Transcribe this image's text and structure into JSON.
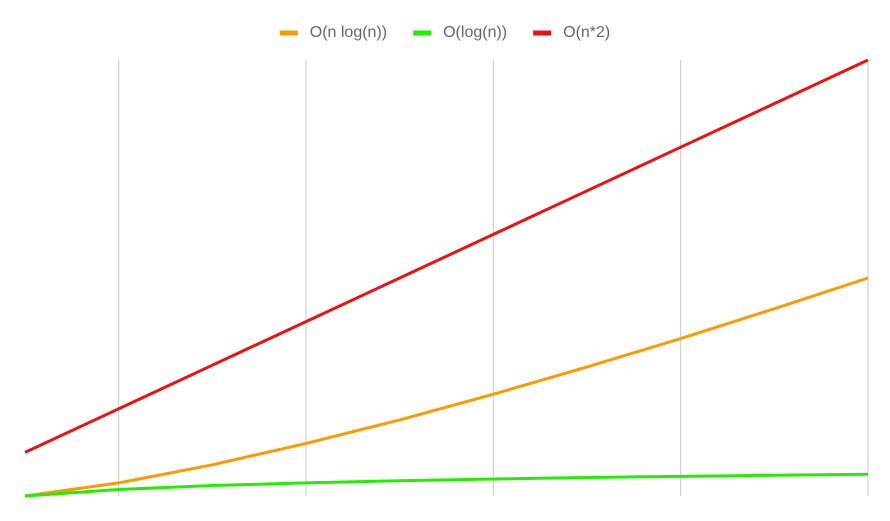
{
  "chart_data": {
    "type": "line",
    "x": [
      1,
      2,
      3,
      4,
      5,
      6,
      7,
      8,
      9,
      10
    ],
    "series": [
      {
        "name": "O(n log(n))",
        "color": "#ff9900",
        "values": [
          0,
          0.6,
          1.43,
          2.41,
          3.49,
          4.67,
          5.92,
          7.22,
          8.59,
          10
        ]
      },
      {
        "name": "O(log(n))",
        "color": "#22ee00",
        "values": [
          0,
          0.3,
          0.48,
          0.6,
          0.7,
          0.78,
          0.85,
          0.9,
          0.95,
          1
        ]
      },
      {
        "name": "O(n*2)",
        "color": "#ee1111",
        "values": [
          2,
          4,
          6,
          8,
          10,
          12,
          14,
          16,
          18,
          20
        ]
      }
    ],
    "xlim": [
      1,
      10
    ],
    "xticks": [
      2,
      4,
      6,
      8,
      10
    ],
    "ylim": [
      0,
      20
    ],
    "grid": true,
    "legend": "top"
  }
}
